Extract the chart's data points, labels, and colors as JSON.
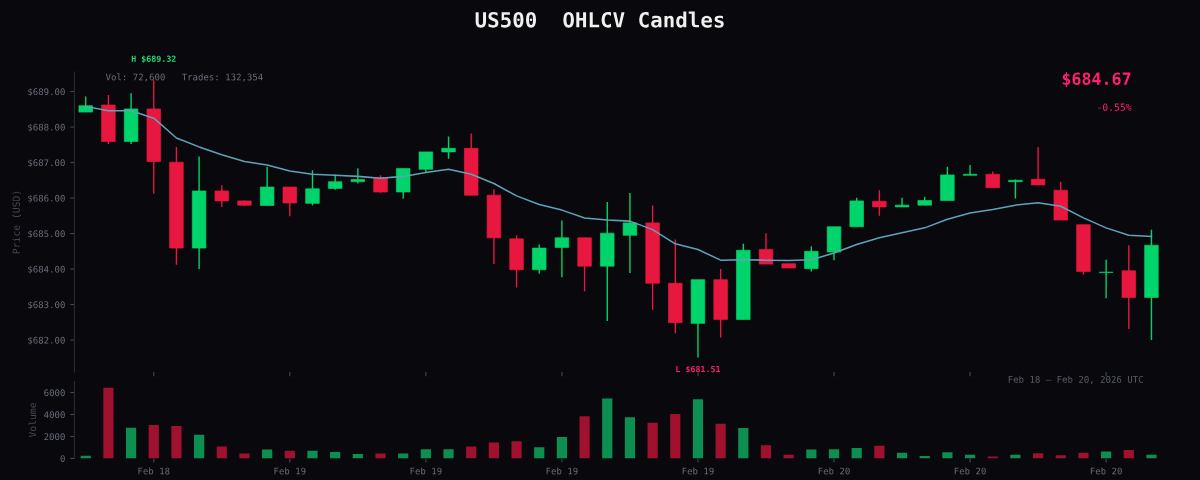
{
  "chart_data": [
    {
      "type": "candlestick",
      "title": "US500  OHLCV Candles",
      "ylabel": "Price (USD)",
      "categories": [
        null,
        null,
        null,
        null,
        null,
        null,
        null,
        null,
        null,
        null,
        null,
        null,
        null,
        null,
        null,
        null,
        null,
        null,
        null,
        null,
        null,
        null,
        null,
        null,
        null,
        null,
        null,
        null,
        null,
        null,
        null,
        null,
        null,
        null,
        null,
        null,
        null,
        null,
        null,
        null,
        null,
        null,
        null,
        null,
        null,
        null,
        null,
        null
      ],
      "ohlc": [
        [
          688.42,
          688.86,
          688.42,
          688.6
        ],
        [
          688.62,
          688.9,
          687.52,
          687.59
        ],
        [
          687.59,
          688.95,
          687.52,
          688.51
        ],
        [
          688.51,
          689.32,
          686.12,
          687.03
        ],
        [
          687.01,
          687.44,
          684.12,
          684.59
        ],
        [
          684.59,
          687.17,
          684.0,
          686.2
        ],
        [
          686.2,
          686.36,
          685.75,
          685.92
        ],
        [
          685.92,
          685.93,
          685.78,
          685.8
        ],
        [
          685.79,
          686.88,
          685.79,
          686.31
        ],
        [
          686.31,
          686.31,
          685.49,
          685.86
        ],
        [
          685.85,
          686.78,
          685.8,
          686.26
        ],
        [
          686.27,
          686.66,
          686.23,
          686.46
        ],
        [
          686.46,
          686.84,
          686.41,
          686.52
        ],
        [
          686.58,
          686.64,
          686.15,
          686.17
        ],
        [
          686.17,
          686.83,
          685.98,
          686.83
        ],
        [
          686.81,
          687.3,
          686.72,
          687.3
        ],
        [
          687.3,
          687.73,
          687.11,
          687.4
        ],
        [
          687.4,
          687.82,
          686.08,
          686.08
        ],
        [
          686.08,
          686.25,
          684.14,
          684.88
        ],
        [
          684.85,
          684.95,
          683.48,
          683.98
        ],
        [
          683.98,
          684.69,
          683.87,
          684.59
        ],
        [
          684.61,
          685.37,
          683.77,
          684.88
        ],
        [
          684.88,
          684.88,
          683.37,
          684.08
        ],
        [
          684.08,
          685.89,
          682.54,
          685.01
        ],
        [
          684.95,
          686.14,
          683.89,
          685.3
        ],
        [
          685.3,
          685.79,
          682.85,
          683.6
        ],
        [
          683.6,
          684.83,
          682.19,
          682.49
        ],
        [
          682.47,
          683.7,
          681.51,
          683.7
        ],
        [
          683.7,
          684.0,
          682.07,
          682.58
        ],
        [
          682.58,
          684.71,
          682.58,
          684.53
        ],
        [
          684.55,
          685.01,
          684.14,
          684.14
        ],
        [
          684.15,
          684.15,
          684.03,
          684.03
        ],
        [
          684.01,
          684.64,
          683.93,
          684.5
        ],
        [
          684.48,
          685.19,
          684.25,
          685.19
        ],
        [
          685.19,
          686.01,
          685.19,
          685.92
        ],
        [
          685.91,
          686.22,
          685.5,
          685.75
        ],
        [
          685.75,
          686.01,
          685.75,
          685.8
        ],
        [
          685.8,
          686.03,
          685.8,
          685.93
        ],
        [
          685.93,
          686.88,
          685.93,
          686.65
        ],
        [
          686.64,
          686.93,
          686.64,
          686.67
        ],
        [
          686.67,
          686.75,
          686.29,
          686.29
        ],
        [
          686.46,
          686.52,
          685.99,
          686.5
        ],
        [
          686.53,
          687.44,
          686.37,
          686.37
        ],
        [
          686.22,
          686.46,
          685.38,
          685.38
        ],
        [
          685.25,
          685.25,
          683.84,
          683.93
        ],
        [
          683.9,
          684.26,
          683.18,
          683.91
        ],
        [
          683.95,
          684.67,
          682.31,
          683.2
        ],
        [
          683.2,
          685.11,
          682.0,
          684.67
        ]
      ],
      "colors": [
        "#00d46a",
        "#e8173f",
        "#00d46a",
        "#e8173f",
        "#e8173f",
        "#00d46a",
        "#e8173f",
        "#e8173f",
        "#00d46a",
        "#e8173f",
        "#00d46a",
        "#00d46a",
        "#00d46a",
        "#e8173f",
        "#00d46a",
        "#00d46a",
        "#00d46a",
        "#e8173f",
        "#e8173f",
        "#e8173f",
        "#00d46a",
        "#00d46a",
        "#e8173f",
        "#00d46a",
        "#00d46a",
        "#e8173f",
        "#e8173f",
        "#00d46a",
        "#e8173f",
        "#00d46a",
        "#e8173f",
        "#e8173f",
        "#00d46a",
        "#00d46a",
        "#00d46a",
        "#e8173f",
        "#00d46a",
        "#00d46a",
        "#00d46a",
        "#00d46a",
        "#e8173f",
        "#00d46a",
        "#e8173f",
        "#e8173f",
        "#e8173f",
        "#00d46a",
        "#e8173f",
        "#00d46a"
      ],
      "series": [
        {
          "type": "line",
          "color": "#5fa3b8",
          "values": [
            688.58,
            688.46,
            688.46,
            688.25,
            687.69,
            687.44,
            687.22,
            687.03,
            686.93,
            686.76,
            686.67,
            686.64,
            686.61,
            686.56,
            686.61,
            686.72,
            686.81,
            686.67,
            686.41,
            686.06,
            685.82,
            685.66,
            685.44,
            685.38,
            685.35,
            685.11,
            684.71,
            684.55,
            684.25,
            684.26,
            684.25,
            684.24,
            684.26,
            684.45,
            684.69,
            684.88,
            685.02,
            685.16,
            685.4,
            685.58,
            685.68,
            685.8,
            685.87,
            685.77,
            685.44,
            685.16,
            684.95,
            684.92
          ]
        }
      ],
      "ylim": [
        681.1,
        689.55
      ],
      "yticks": [
        {
          "value": 682,
          "label": "$682.00"
        },
        {
          "value": 683,
          "label": "$683.00"
        },
        {
          "value": 684,
          "label": "$684.00"
        },
        {
          "value": 685,
          "label": "$685.00"
        },
        {
          "value": 686,
          "label": "$686.00"
        },
        {
          "value": 687,
          "label": "$687.00"
        },
        {
          "value": 688,
          "label": "$688.00"
        },
        {
          "value": 689,
          "label": "$689.00"
        }
      ],
      "tick_labels": "y",
      "grid": false,
      "legend": false,
      "annotations": [
        {
          "text": "H $689.32",
          "y": 689.32
        },
        {
          "text": "L $681.51",
          "y": 681.51
        },
        "Vol: 72,600   Trades: 132,354",
        "$684.67",
        "-0.55%"
      ]
    },
    {
      "type": "bar",
      "ylabel": "Volume",
      "categories": [
        null,
        null,
        null,
        "Feb 18",
        null,
        null,
        null,
        null,
        null,
        "Feb 19",
        null,
        null,
        null,
        null,
        null,
        "Feb 19",
        null,
        null,
        null,
        null,
        null,
        "Feb 19",
        null,
        null,
        null,
        null,
        null,
        "Feb 19",
        null,
        null,
        null,
        null,
        null,
        "Feb 20",
        null,
        null,
        null,
        null,
        null,
        "Feb 20",
        null,
        null,
        null,
        null,
        null,
        "Feb 20",
        null,
        null
      ],
      "values": [
        250,
        6440,
        2800,
        3050,
        2950,
        2150,
        1090,
        440,
        800,
        690,
        690,
        580,
        400,
        440,
        440,
        840,
        840,
        1090,
        1450,
        1560,
        1020,
        1960,
        3850,
        5450,
        3750,
        3240,
        4040,
        5380,
        3160,
        2760,
        1200,
        330,
        800,
        840,
        950,
        1160,
        510,
        220,
        550,
        330,
        180,
        330,
        470,
        290,
        510,
        620,
        760,
        330
      ],
      "colors": [
        "#0d8f52",
        "#a0112f",
        "#0d8f52",
        "#a0112f",
        "#a0112f",
        "#0d8f52",
        "#a0112f",
        "#a0112f",
        "#0d8f52",
        "#a0112f",
        "#0d8f52",
        "#0d8f52",
        "#0d8f52",
        "#a0112f",
        "#0d8f52",
        "#0d8f52",
        "#0d8f52",
        "#a0112f",
        "#a0112f",
        "#a0112f",
        "#0d8f52",
        "#0d8f52",
        "#a0112f",
        "#0d8f52",
        "#0d8f52",
        "#a0112f",
        "#a0112f",
        "#0d8f52",
        "#a0112f",
        "#0d8f52",
        "#a0112f",
        "#a0112f",
        "#0d8f52",
        "#0d8f52",
        "#0d8f52",
        "#a0112f",
        "#0d8f52",
        "#0d8f52",
        "#0d8f52",
        "#0d8f52",
        "#a0112f",
        "#0d8f52",
        "#a0112f",
        "#a0112f",
        "#a0112f",
        "#0d8f52",
        "#a0112f",
        "#0d8f52"
      ],
      "ylim": [
        0,
        7000
      ],
      "yticks": [
        0,
        2000,
        4000,
        6000
      ],
      "grid": false,
      "legend": false,
      "annotations": [
        "Feb 18 – Feb 20, 2026 UTC"
      ]
    }
  ]
}
